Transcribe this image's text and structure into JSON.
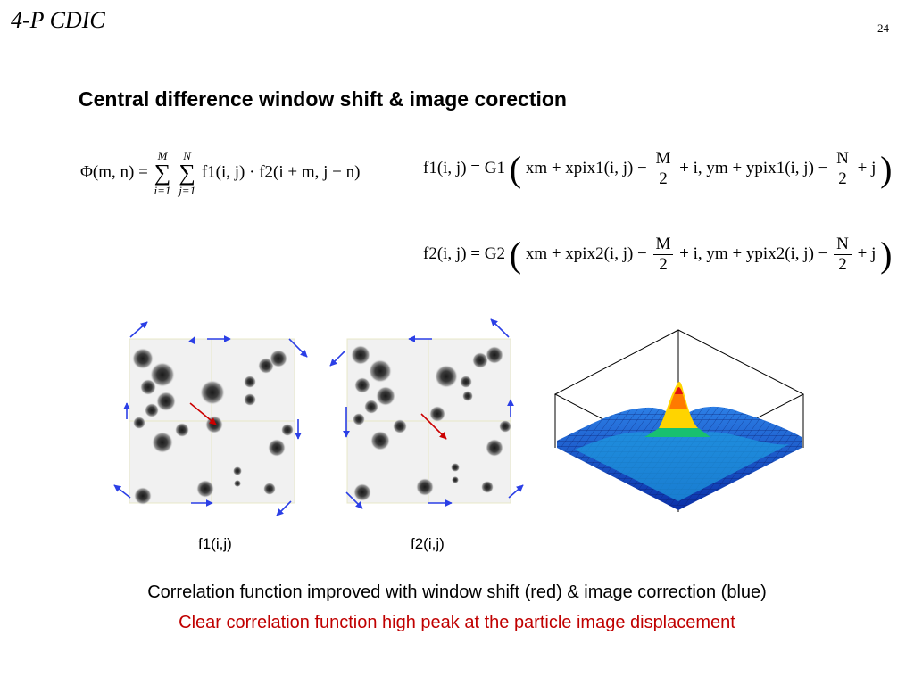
{
  "slide": {
    "title": "4-P CDIC",
    "page_number": "24",
    "heading": "Central difference window shift & image corection"
  },
  "equations": {
    "phi": {
      "lhs": "Φ(m, n) =",
      "sum_upper_1": "M",
      "sum_lower_1": "i=1",
      "sum_upper_2": "N",
      "sum_lower_2": "j=1",
      "rhs": "f1(i, j) · f2(i + m, j + n)"
    },
    "f1": {
      "lhs": "f1(i, j) = G1",
      "term_x": "xm + xpix1(i, j) −",
      "frac_x_num": "M",
      "frac_x_den": "2",
      "term_y": "+ i, ym + ypix1(i, j) −",
      "frac_y_num": "N",
      "frac_y_den": "2",
      "tail": "+ j"
    },
    "f2": {
      "lhs": "f2(i, j) = G2",
      "term_x": "xm + xpix2(i, j) −",
      "frac_x_num": "M",
      "frac_x_den": "2",
      "term_y": "+ i, ym + ypix2(i, j) −",
      "frac_y_num": "N",
      "frac_y_den": "2",
      "tail": "+ j"
    }
  },
  "figures": {
    "image_1_caption": "f1(i,j)",
    "image_2_caption": "f2(i,j)",
    "arrow_colors": {
      "image_correction": "#2b3fe6",
      "window_shift": "#cc0000"
    }
  },
  "captions": {
    "line_1": "Correlation function improved with window shift (red) & image correction (blue)",
    "line_2": "Clear correlation function high peak at the particle image displacement"
  }
}
